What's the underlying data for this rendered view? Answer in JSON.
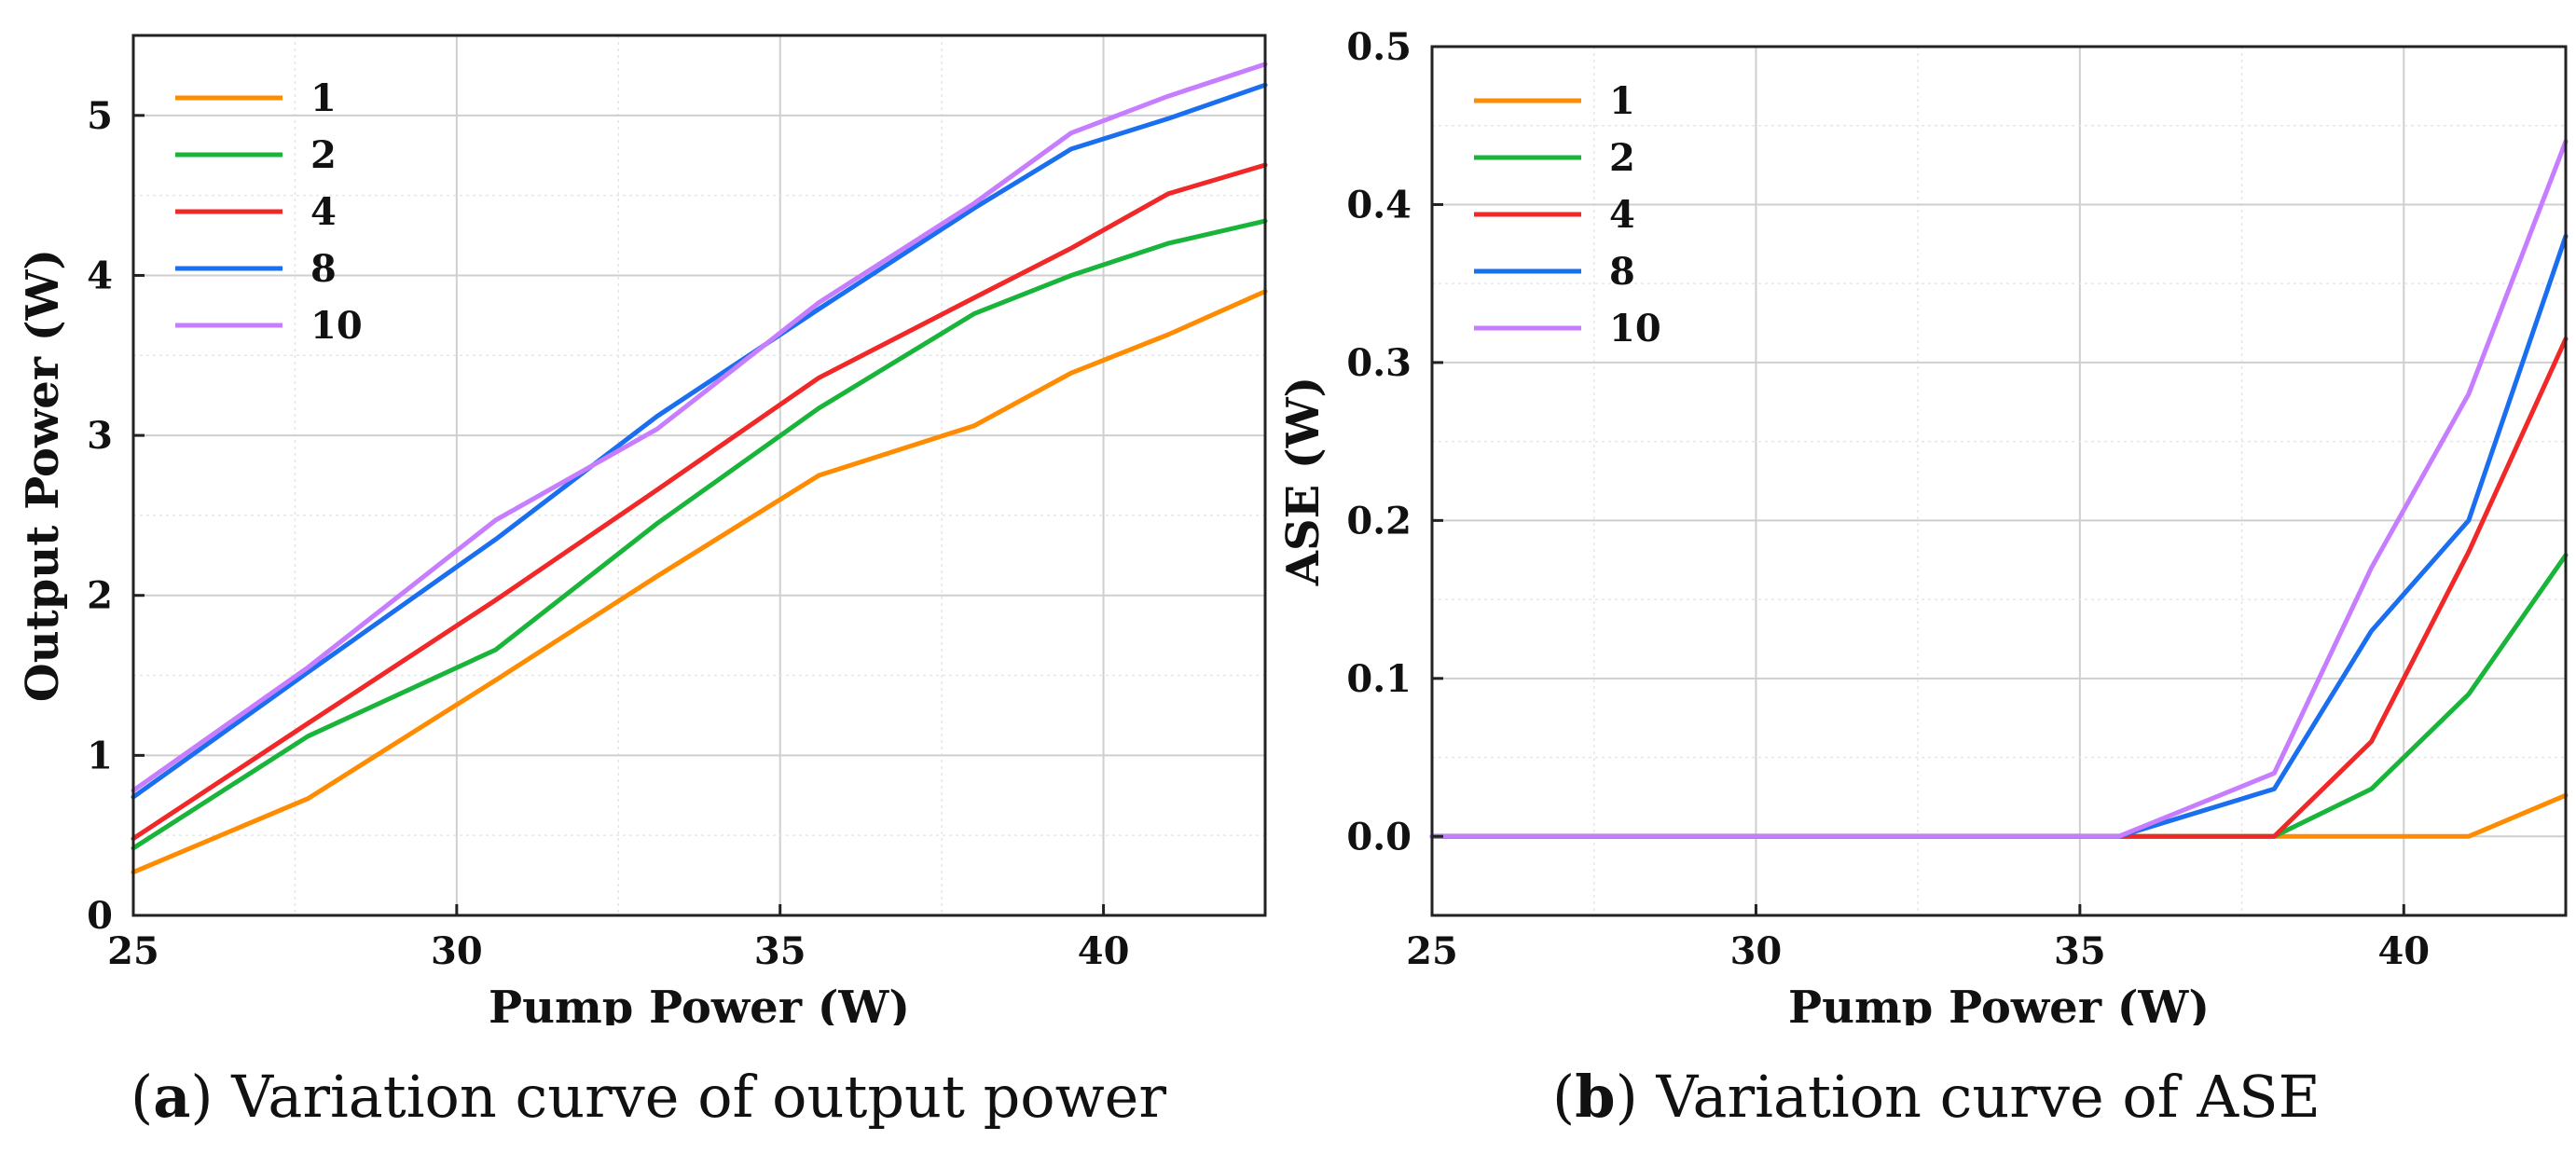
{
  "chart_data": [
    {
      "type": "line",
      "xlabel": "Pump Power (W)",
      "ylabel": "Output Power (W)",
      "xlim": [
        25,
        42.5
      ],
      "ylim": [
        0,
        5.5
      ],
      "xticks": [
        25,
        30,
        35,
        40
      ],
      "yticks": [
        0,
        1,
        2,
        3,
        4,
        5
      ],
      "xtick_labels": [
        "25",
        "30",
        "35",
        "40"
      ],
      "ytick_labels": [
        "0",
        "1",
        "2",
        "3",
        "4",
        "5"
      ],
      "x": [
        25,
        27.7,
        30.6,
        33.1,
        35.6,
        38.0,
        39.5,
        41.0,
        42.5
      ],
      "series": [
        {
          "name": "1",
          "color": "#ff8c00",
          "values": [
            0.27,
            0.73,
            1.47,
            2.12,
            2.75,
            3.06,
            3.39,
            3.63,
            3.9
          ]
        },
        {
          "name": "2",
          "color": "#19b43a",
          "values": [
            0.42,
            1.12,
            1.66,
            2.45,
            3.17,
            3.76,
            4.0,
            4.2,
            4.34
          ]
        },
        {
          "name": "4",
          "color": "#f02828",
          "values": [
            0.48,
            1.2,
            1.97,
            2.66,
            3.36,
            3.86,
            4.17,
            4.51,
            4.69
          ]
        },
        {
          "name": "8",
          "color": "#1a6ef0",
          "values": [
            0.74,
            1.52,
            2.35,
            3.12,
            3.79,
            4.42,
            4.79,
            4.98,
            5.19
          ]
        },
        {
          "name": "10",
          "color": "#c77dff",
          "values": [
            0.78,
            1.55,
            2.47,
            3.04,
            3.83,
            4.45,
            4.89,
            5.12,
            5.32
          ]
        }
      ],
      "legend_position": "top-left",
      "grid": true,
      "caption": {
        "letter": "a",
        "text": "Variation curve of output power"
      }
    },
    {
      "type": "line",
      "xlabel": "Pump Power (W)",
      "ylabel": "ASE (W)",
      "xlim": [
        25,
        42.5
      ],
      "ylim": [
        -0.05,
        0.5
      ],
      "xticks": [
        25,
        30,
        35,
        40
      ],
      "yticks": [
        0.0,
        0.1,
        0.2,
        0.3,
        0.4,
        0.5
      ],
      "xtick_labels": [
        "25",
        "30",
        "35",
        "40"
      ],
      "ytick_labels": [
        "0.0",
        "0.1",
        "0.2",
        "0.3",
        "0.4",
        "0.5"
      ],
      "x": [
        25,
        27.7,
        30.6,
        33.1,
        35.6,
        38.0,
        39.5,
        41.0,
        42.5
      ],
      "series": [
        {
          "name": "1",
          "color": "#ff8c00",
          "values": [
            0,
            0,
            0,
            0,
            0,
            0,
            0,
            0,
            0.026
          ]
        },
        {
          "name": "2",
          "color": "#19b43a",
          "values": [
            0,
            0,
            0,
            0,
            0,
            0,
            0.03,
            0.09,
            0.178
          ]
        },
        {
          "name": "4",
          "color": "#f02828",
          "values": [
            0,
            0,
            0,
            0,
            0,
            0,
            0.06,
            0.18,
            0.315
          ]
        },
        {
          "name": "8",
          "color": "#1a6ef0",
          "values": [
            0,
            0,
            0,
            0,
            0,
            0.03,
            0.13,
            0.2,
            0.38
          ]
        },
        {
          "name": "10",
          "color": "#c77dff",
          "values": [
            0,
            0,
            0,
            0,
            0,
            0.04,
            0.17,
            0.28,
            0.44
          ]
        }
      ],
      "legend_position": "top-left",
      "grid": true,
      "caption": {
        "letter": "b",
        "text": "Variation curve of ASE"
      }
    }
  ]
}
